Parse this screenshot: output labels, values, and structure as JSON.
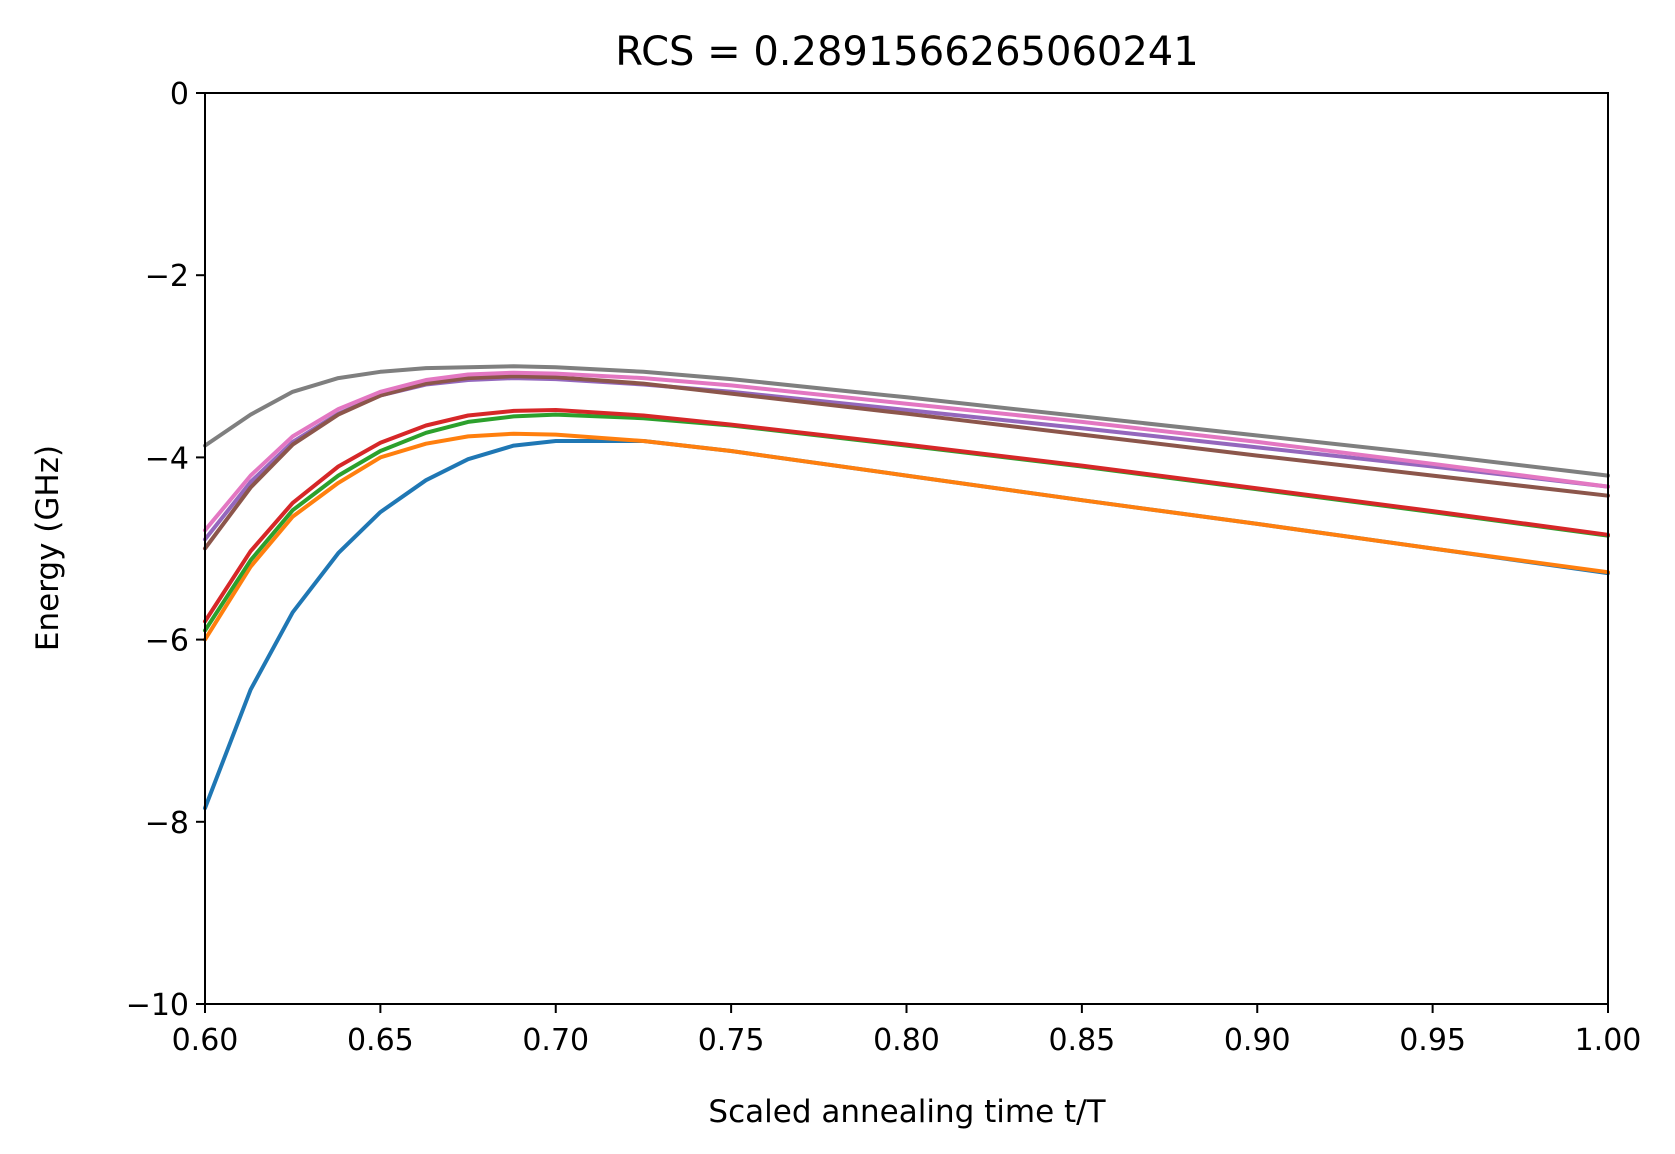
{
  "chart_data": {
    "type": "line",
    "title": "RCS = 0.2891566265060241",
    "xlabel": "Scaled annealing time t/T",
    "ylabel": "Energy (GHz)",
    "xlim": [
      0.6,
      1.0
    ],
    "ylim": [
      -10,
      0
    ],
    "xticks": [
      0.6,
      0.65,
      0.7,
      0.75,
      0.8,
      0.85,
      0.9,
      0.95,
      1.0
    ],
    "xtick_labels": [
      "0.60",
      "0.65",
      "0.70",
      "0.75",
      "0.80",
      "0.85",
      "0.90",
      "0.95",
      "1.00"
    ],
    "yticks": [
      0,
      -2,
      -4,
      -6,
      -8,
      -10
    ],
    "ytick_labels": [
      "0",
      "−2",
      "−4",
      "−6",
      "−8",
      "−10"
    ],
    "grid": false,
    "legend": false,
    "series": [
      {
        "color": "#1f77b4",
        "x": [
          0.6,
          0.613,
          0.625,
          0.638,
          0.65,
          0.663,
          0.675,
          0.688,
          0.7,
          0.725,
          0.75,
          0.8,
          0.85,
          0.9,
          0.95,
          1.0
        ],
        "y": [
          -7.85,
          -6.55,
          -5.7,
          -5.05,
          -4.6,
          -4.25,
          -4.02,
          -3.87,
          -3.82,
          -3.82,
          -3.93,
          -4.2,
          -4.47,
          -4.73,
          -5.0,
          -5.27
        ]
      },
      {
        "color": "#ff7f0e",
        "x": [
          0.6,
          0.613,
          0.625,
          0.638,
          0.65,
          0.663,
          0.675,
          0.688,
          0.7,
          0.725,
          0.75,
          0.8,
          0.85,
          0.9,
          0.95,
          1.0
        ],
        "y": [
          -6.0,
          -5.2,
          -4.65,
          -4.28,
          -4.0,
          -3.85,
          -3.77,
          -3.74,
          -3.75,
          -3.82,
          -3.93,
          -4.2,
          -4.47,
          -4.73,
          -5.0,
          -5.26
        ]
      },
      {
        "color": "#2ca02c",
        "x": [
          0.6,
          0.613,
          0.625,
          0.638,
          0.65,
          0.663,
          0.675,
          0.688,
          0.7,
          0.725,
          0.75,
          0.8,
          0.85,
          0.9,
          0.95,
          1.0
        ],
        "y": [
          -5.9,
          -5.13,
          -4.58,
          -4.2,
          -3.93,
          -3.73,
          -3.61,
          -3.55,
          -3.53,
          -3.57,
          -3.65,
          -3.87,
          -4.1,
          -4.35,
          -4.6,
          -4.86
        ]
      },
      {
        "color": "#d62728",
        "x": [
          0.6,
          0.613,
          0.625,
          0.638,
          0.65,
          0.663,
          0.675,
          0.688,
          0.7,
          0.725,
          0.75,
          0.8,
          0.85,
          0.9,
          0.95,
          1.0
        ],
        "y": [
          -5.8,
          -5.03,
          -4.5,
          -4.1,
          -3.84,
          -3.65,
          -3.54,
          -3.49,
          -3.48,
          -3.54,
          -3.64,
          -3.86,
          -4.09,
          -4.34,
          -4.59,
          -4.85
        ]
      },
      {
        "color": "#9467bd",
        "x": [
          0.6,
          0.613,
          0.625,
          0.638,
          0.65,
          0.663,
          0.675,
          0.688,
          0.7,
          0.725,
          0.75,
          0.8,
          0.85,
          0.9,
          0.95,
          1.0
        ],
        "y": [
          -4.9,
          -4.27,
          -3.83,
          -3.52,
          -3.32,
          -3.2,
          -3.15,
          -3.13,
          -3.14,
          -3.2,
          -3.28,
          -3.48,
          -3.68,
          -3.89,
          -4.1,
          -4.32
        ]
      },
      {
        "color": "#8c564b",
        "x": [
          0.6,
          0.613,
          0.625,
          0.638,
          0.65,
          0.663,
          0.675,
          0.688,
          0.7,
          0.725,
          0.75,
          0.8,
          0.85,
          0.9,
          0.95,
          1.0
        ],
        "y": [
          -5.0,
          -4.33,
          -3.86,
          -3.53,
          -3.32,
          -3.19,
          -3.13,
          -3.11,
          -3.12,
          -3.19,
          -3.3,
          -3.52,
          -3.75,
          -3.98,
          -4.2,
          -4.42
        ]
      },
      {
        "color": "#e377c2",
        "x": [
          0.6,
          0.613,
          0.625,
          0.638,
          0.65,
          0.663,
          0.675,
          0.688,
          0.7,
          0.725,
          0.75,
          0.8,
          0.85,
          0.9,
          0.95,
          1.0
        ],
        "y": [
          -4.8,
          -4.2,
          -3.77,
          -3.47,
          -3.28,
          -3.15,
          -3.09,
          -3.07,
          -3.08,
          -3.13,
          -3.21,
          -3.41,
          -3.61,
          -3.83,
          -4.07,
          -4.32
        ]
      },
      {
        "color": "#7f7f7f",
        "x": [
          0.6,
          0.613,
          0.625,
          0.638,
          0.65,
          0.663,
          0.675,
          0.688,
          0.7,
          0.725,
          0.75,
          0.8,
          0.85,
          0.9,
          0.95,
          1.0
        ],
        "y": [
          -3.87,
          -3.53,
          -3.28,
          -3.13,
          -3.06,
          -3.02,
          -3.01,
          -3.0,
          -3.01,
          -3.06,
          -3.14,
          -3.34,
          -3.55,
          -3.76,
          -3.97,
          -4.2
        ]
      }
    ]
  }
}
